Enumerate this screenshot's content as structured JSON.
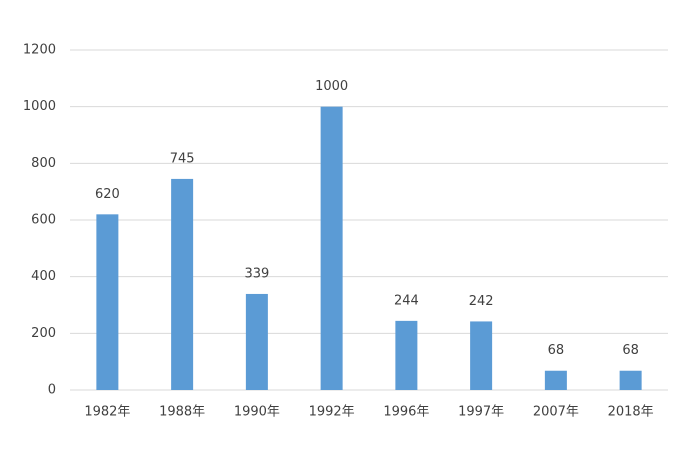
{
  "chart_data": {
    "type": "bar",
    "categories": [
      "1982年",
      "1988年",
      "1990年",
      "1992年",
      "1996年",
      "1997年",
      "2007年",
      "2018年"
    ],
    "values": [
      620,
      745,
      339,
      1000,
      244,
      242,
      68,
      68
    ],
    "color": "#5b9bd5",
    "ylim": [
      0,
      1200
    ],
    "yticks": [
      0,
      200,
      400,
      600,
      800,
      1000,
      1200
    ],
    "grid": true
  }
}
